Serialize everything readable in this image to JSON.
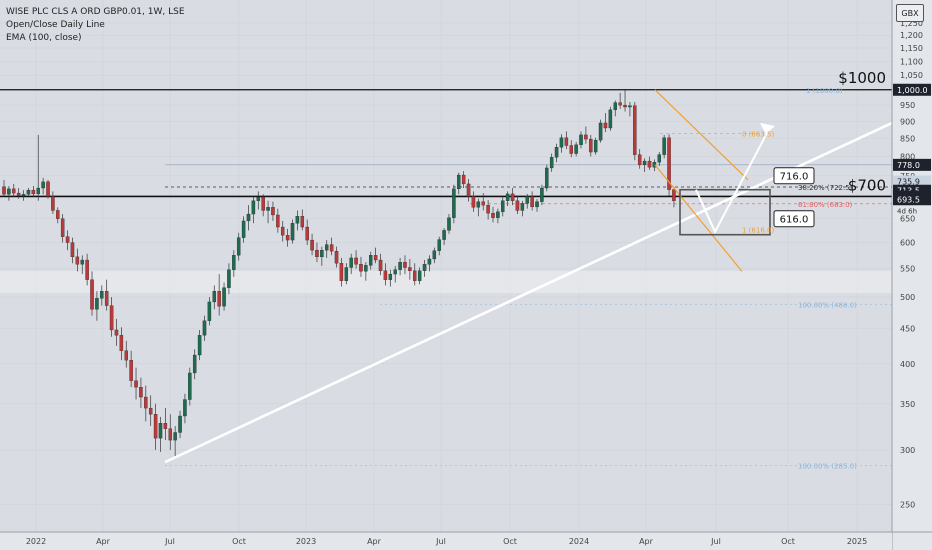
{
  "legend": {
    "symbol": "WISE PLC CLS A ORD GBP0.01, 1W, LSE",
    "indicator1": "Open/Close Daily Line",
    "indicator2": "EMA (100, close)"
  },
  "currency": "GBX",
  "colors": {
    "up": "#1f6b4f",
    "down": "#b83a3a",
    "wick": "#333333",
    "trendline": "#ffffff",
    "channel": "#f0a030",
    "fib_orange": "#f0a030",
    "fib_red": "#e06060",
    "fib_blue": "#8ab4d8"
  },
  "annotations": {
    "price_1000": "$1000",
    "price_700": "$700",
    "box_top": "716.0",
    "box_bottom": "616.0",
    "fib_0": "0 (863.5)",
    "fib_382": "38.20% (722.5)",
    "fib_618": "61.80% (683.0)",
    "fib_100_low": "100.00% (488.0)",
    "fib_100_deep": "100.00% (285.0)",
    "fib_1_top": "1 (1000.0)",
    "fib_1_box": "1 (616.0)",
    "countdown": "4d 6h"
  },
  "price_tags": [
    {
      "label": "1,000.0",
      "value": 1000,
      "style": "dark"
    },
    {
      "label": "778.0",
      "value": 778,
      "style": "dark"
    },
    {
      "label": "735.9",
      "value": 735.9,
      "style": "light"
    },
    {
      "label": "713.5",
      "value": 713.5,
      "style": "dark"
    },
    {
      "label": "700.0",
      "value": 700,
      "style": "dark"
    },
    {
      "label": "693.5",
      "value": 693.5,
      "style": "dark"
    }
  ],
  "chart_data": {
    "type": "candlestick",
    "y_scale": "log",
    "ylim": [
      228,
      1350
    ],
    "y_ticks": [
      250,
      300,
      350,
      400,
      450,
      500,
      550,
      600,
      650,
      750,
      800,
      850,
      900,
      950,
      1050,
      1100,
      1150,
      1200,
      1250
    ],
    "x_ticks": [
      "2022",
      "Apr",
      "Jul",
      "Oct",
      "2023",
      "Apr",
      "Jul",
      "Oct",
      "2024",
      "Apr",
      "Jul",
      "Oct",
      "2025"
    ],
    "candles": [
      [
        723,
        740,
        700,
        705
      ],
      [
        705,
        725,
        690,
        718
      ],
      [
        718,
        730,
        700,
        708
      ],
      [
        708,
        720,
        695,
        702
      ],
      [
        702,
        715,
        690,
        705
      ],
      [
        705,
        720,
        698,
        715
      ],
      [
        715,
        725,
        700,
        706
      ],
      [
        706,
        860,
        690,
        720
      ],
      [
        720,
        745,
        705,
        735
      ],
      [
        735,
        740,
        695,
        700
      ],
      [
        700,
        712,
        660,
        668
      ],
      [
        668,
        675,
        640,
        650
      ],
      [
        650,
        660,
        600,
        612
      ],
      [
        612,
        625,
        585,
        600
      ],
      [
        600,
        610,
        560,
        572
      ],
      [
        572,
        588,
        545,
        558
      ],
      [
        558,
        575,
        540,
        566
      ],
      [
        566,
        578,
        520,
        530
      ],
      [
        530,
        545,
        470,
        480
      ],
      [
        480,
        510,
        462,
        498
      ],
      [
        498,
        520,
        486,
        510
      ],
      [
        510,
        530,
        478,
        486
      ],
      [
        486,
        500,
        438,
        448
      ],
      [
        448,
        465,
        425,
        440
      ],
      [
        440,
        452,
        405,
        418
      ],
      [
        418,
        432,
        395,
        405
      ],
      [
        405,
        418,
        370,
        378
      ],
      [
        378,
        395,
        355,
        370
      ],
      [
        370,
        382,
        345,
        358
      ],
      [
        358,
        372,
        330,
        345
      ],
      [
        345,
        360,
        325,
        338
      ],
      [
        338,
        350,
        300,
        312
      ],
      [
        312,
        335,
        298,
        328
      ],
      [
        328,
        345,
        310,
        322
      ],
      [
        322,
        338,
        300,
        310
      ],
      [
        310,
        325,
        292,
        318
      ],
      [
        318,
        342,
        312,
        336
      ],
      [
        336,
        362,
        328,
        355
      ],
      [
        355,
        395,
        348,
        388
      ],
      [
        388,
        420,
        380,
        412
      ],
      [
        412,
        448,
        405,
        440
      ],
      [
        440,
        470,
        432,
        462
      ],
      [
        462,
        500,
        455,
        492
      ],
      [
        492,
        520,
        480,
        510
      ],
      [
        510,
        540,
        470,
        485
      ],
      [
        485,
        525,
        478,
        516
      ],
      [
        516,
        560,
        505,
        548
      ],
      [
        548,
        585,
        535,
        575
      ],
      [
        575,
        620,
        565,
        610
      ],
      [
        610,
        655,
        600,
        645
      ],
      [
        645,
        680,
        625,
        660
      ],
      [
        660,
        700,
        640,
        690
      ],
      [
        690,
        712,
        670,
        698
      ],
      [
        698,
        705,
        655,
        668
      ],
      [
        668,
        690,
        640,
        675
      ],
      [
        675,
        688,
        645,
        658
      ],
      [
        658,
        672,
        620,
        632
      ],
      [
        632,
        645,
        602,
        615
      ],
      [
        615,
        628,
        592,
        605
      ],
      [
        605,
        648,
        598,
        640
      ],
      [
        640,
        668,
        625,
        655
      ],
      [
        655,
        670,
        625,
        632
      ],
      [
        632,
        648,
        595,
        605
      ],
      [
        605,
        618,
        575,
        585
      ],
      [
        585,
        600,
        562,
        572
      ],
      [
        572,
        592,
        555,
        585
      ],
      [
        585,
        605,
        570,
        596
      ],
      [
        596,
        610,
        575,
        583
      ],
      [
        583,
        592,
        552,
        560
      ],
      [
        560,
        570,
        518,
        528
      ],
      [
        528,
        560,
        522,
        552
      ],
      [
        552,
        578,
        540,
        570
      ],
      [
        570,
        585,
        550,
        558
      ],
      [
        558,
        572,
        535,
        545
      ],
      [
        545,
        562,
        528,
        556
      ],
      [
        556,
        582,
        548,
        575
      ],
      [
        575,
        590,
        560,
        566
      ],
      [
        566,
        578,
        538,
        546
      ],
      [
        546,
        560,
        520,
        530
      ],
      [
        530,
        548,
        518,
        540
      ],
      [
        540,
        555,
        525,
        548
      ],
      [
        548,
        570,
        538,
        562
      ],
      [
        562,
        575,
        540,
        552
      ],
      [
        552,
        568,
        530,
        546
      ],
      [
        546,
        560,
        520,
        528
      ],
      [
        528,
        552,
        522,
        546
      ],
      [
        546,
        566,
        535,
        558
      ],
      [
        558,
        575,
        545,
        568
      ],
      [
        568,
        590,
        560,
        584
      ],
      [
        584,
        612,
        575,
        606
      ],
      [
        606,
        630,
        595,
        625
      ],
      [
        625,
        660,
        618,
        652
      ],
      [
        652,
        728,
        640,
        718
      ],
      [
        718,
        758,
        705,
        752
      ],
      [
        752,
        762,
        720,
        730
      ],
      [
        730,
        742,
        688,
        700
      ],
      [
        700,
        712,
        665,
        675
      ],
      [
        675,
        695,
        655,
        688
      ],
      [
        688,
        708,
        668,
        680
      ],
      [
        680,
        692,
        648,
        662
      ],
      [
        662,
        676,
        642,
        652
      ],
      [
        652,
        672,
        640,
        665
      ],
      [
        665,
        700,
        655,
        690
      ],
      [
        690,
        712,
        678,
        706
      ],
      [
        706,
        720,
        680,
        690
      ],
      [
        690,
        702,
        660,
        668
      ],
      [
        668,
        690,
        655,
        684
      ],
      [
        684,
        706,
        672,
        700
      ],
      [
        700,
        712,
        668,
        676
      ],
      [
        676,
        694,
        665,
        688
      ],
      [
        688,
        728,
        680,
        720
      ],
      [
        720,
        778,
        712,
        770
      ],
      [
        770,
        808,
        760,
        798
      ],
      [
        798,
        835,
        785,
        825
      ],
      [
        825,
        862,
        810,
        852
      ],
      [
        852,
        870,
        820,
        830
      ],
      [
        830,
        845,
        798,
        808
      ],
      [
        808,
        840,
        800,
        832
      ],
      [
        832,
        870,
        822,
        860
      ],
      [
        860,
        885,
        835,
        848
      ],
      [
        848,
        860,
        800,
        812
      ],
      [
        812,
        852,
        805,
        845
      ],
      [
        845,
        905,
        838,
        895
      ],
      [
        895,
        925,
        868,
        880
      ],
      [
        880,
        945,
        872,
        935
      ],
      [
        935,
        965,
        915,
        958
      ],
      [
        958,
        990,
        938,
        950
      ],
      [
        950,
        998,
        930,
        944
      ],
      [
        944,
        960,
        915,
        948
      ],
      [
        948,
        960,
        790,
        805
      ],
      [
        805,
        820,
        768,
        778
      ],
      [
        778,
        795,
        760,
        788
      ],
      [
        788,
        800,
        765,
        772
      ],
      [
        772,
        792,
        762,
        785
      ],
      [
        785,
        812,
        775,
        805
      ],
      [
        805,
        860,
        795,
        852
      ],
      [
        852,
        862,
        702,
        716
      ],
      [
        716,
        722,
        675,
        690
      ]
    ]
  }
}
